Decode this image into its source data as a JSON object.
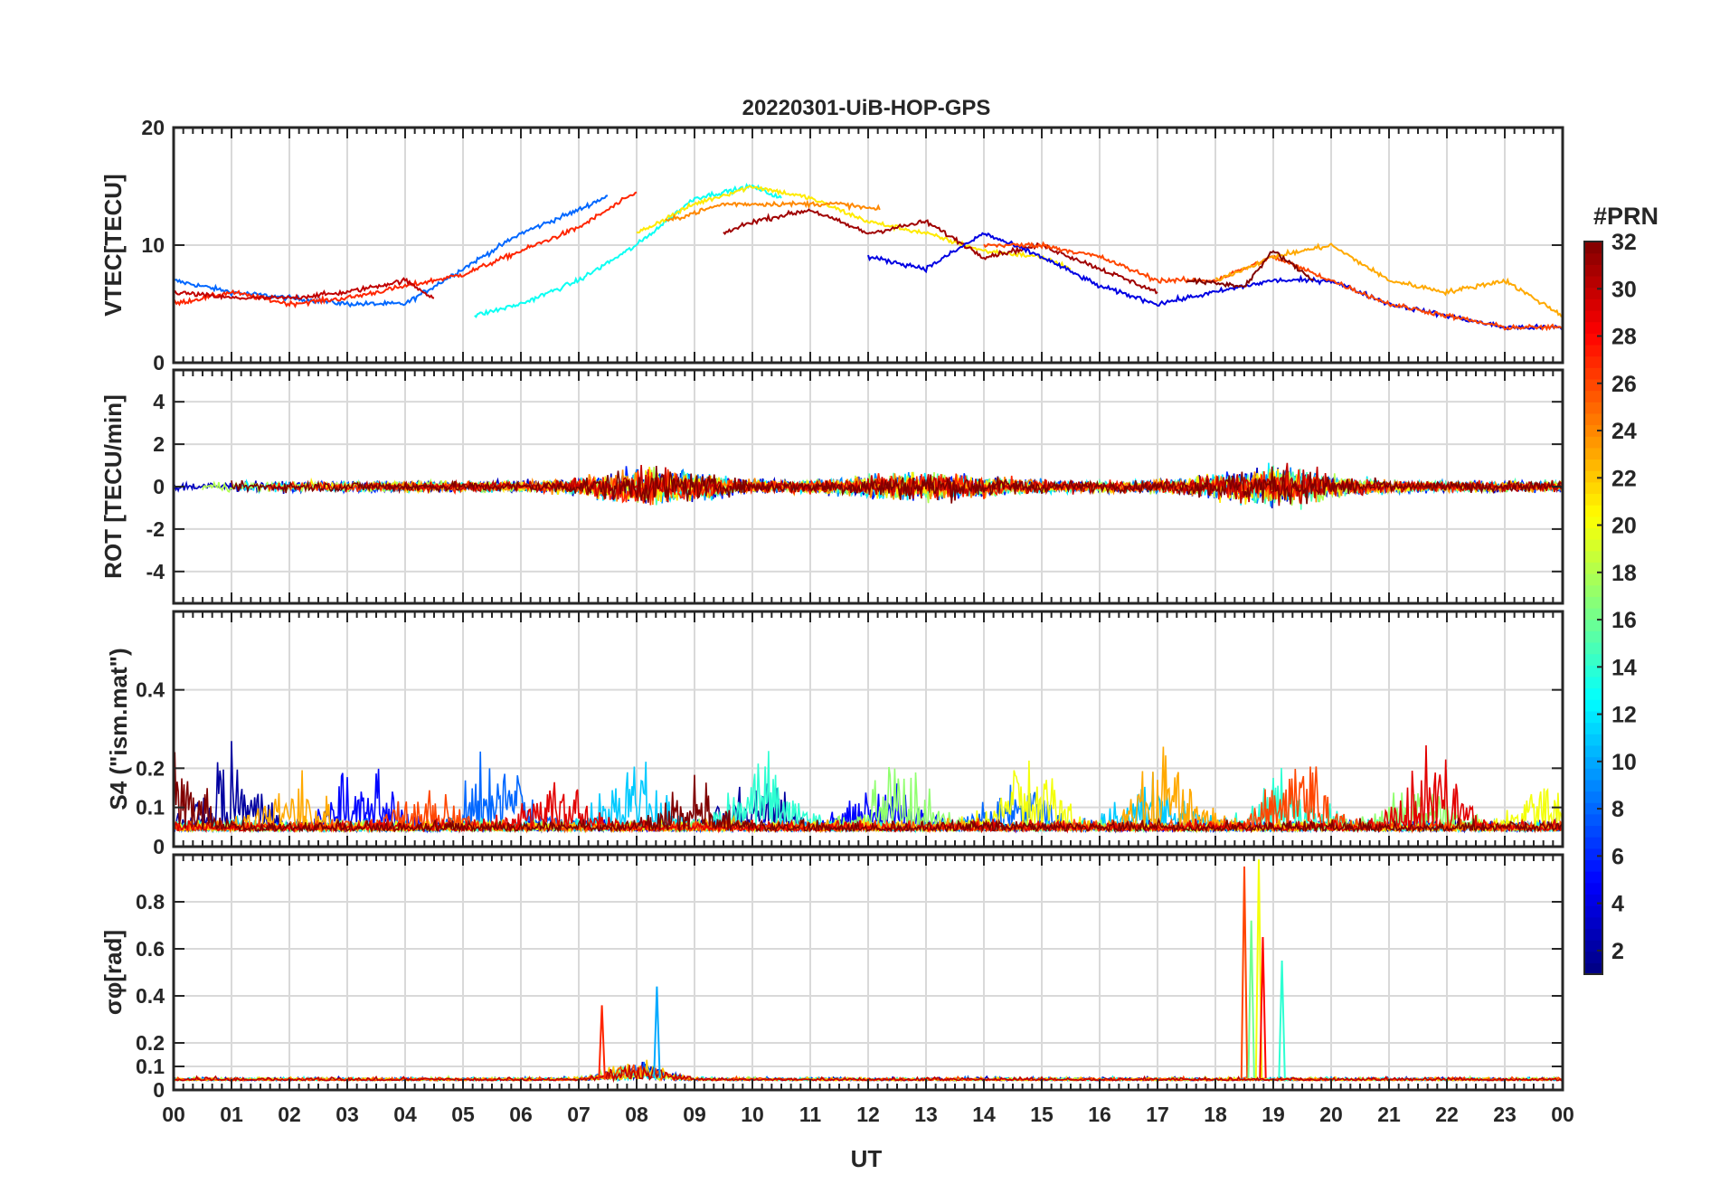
{
  "chart_data": [
    {
      "type": "line",
      "title": "20220301-UiB-HOP-GPS",
      "ylabel": "VTEC[TECU]",
      "ylim": [
        0,
        20
      ],
      "yticks": [
        0,
        10,
        20
      ],
      "xlim": [
        0,
        24
      ],
      "grid": true,
      "traces": [
        {
          "prn": 8,
          "x": [
            0,
            1,
            2,
            3,
            4,
            5,
            6,
            7,
            7.5
          ],
          "y": [
            7,
            6,
            5.5,
            5,
            5,
            8,
            11,
            13,
            14.2
          ]
        },
        {
          "prn": 27,
          "x": [
            0,
            1,
            2,
            3,
            4,
            5,
            6,
            7,
            8
          ],
          "y": [
            5,
            6,
            5,
            5.5,
            6.5,
            7.5,
            9.5,
            11.5,
            14.5
          ]
        },
        {
          "prn": 30,
          "x": [
            0,
            1,
            2,
            3,
            4,
            4.5
          ],
          "y": [
            6,
            5.5,
            5.5,
            6,
            7,
            5.5
          ]
        },
        {
          "prn": 13,
          "x": [
            5.2,
            6,
            7,
            8,
            9,
            10,
            10.5
          ],
          "y": [
            4,
            5,
            7,
            10,
            14,
            15,
            14
          ]
        },
        {
          "prn": 21,
          "x": [
            8,
            9,
            10,
            11,
            12,
            13,
            14,
            15,
            15.5
          ],
          "y": [
            11,
            13.5,
            15,
            14,
            12,
            11,
            9.5,
            9,
            8
          ]
        },
        {
          "prn": 24,
          "x": [
            8.5,
            9.5,
            10.5,
            11.5,
            12.2
          ],
          "y": [
            12,
            13.5,
            13.5,
            13.5,
            13
          ]
        },
        {
          "prn": 31,
          "x": [
            9.5,
            10,
            11,
            12,
            13,
            14,
            15,
            16,
            17
          ],
          "y": [
            11,
            12,
            13,
            11,
            12,
            9,
            10,
            8,
            6
          ]
        },
        {
          "prn": 4,
          "x": [
            12,
            13,
            14,
            15,
            16,
            17,
            18,
            19,
            20,
            21,
            22,
            23,
            24
          ],
          "y": [
            9,
            8,
            11,
            9,
            6.5,
            5,
            6,
            7,
            7,
            5,
            4,
            3,
            3
          ]
        },
        {
          "prn": 26,
          "x": [
            14,
            15,
            16,
            17,
            18,
            19,
            20,
            21,
            22,
            23,
            24
          ],
          "y": [
            10,
            10,
            9,
            7,
            7,
            9,
            7,
            5,
            4,
            3,
            3
          ]
        },
        {
          "prn": 23,
          "x": [
            18,
            19,
            20,
            21,
            22,
            23,
            24
          ],
          "y": [
            7,
            9,
            10,
            7,
            6,
            7,
            4
          ]
        },
        {
          "prn": 32,
          "x": [
            17.5,
            18.5,
            19,
            19.7
          ],
          "y": [
            7,
            6.5,
            9.5,
            7
          ]
        }
      ]
    },
    {
      "type": "line",
      "ylabel": "ROT [TECU/min]",
      "ylim": [
        -5.5,
        5.5
      ],
      "yticks": [
        -4,
        -2,
        0,
        2,
        4
      ],
      "xlim": [
        0,
        24
      ],
      "grid": true
    },
    {
      "type": "line",
      "ylabel": "S4 (\"ism.mat\")",
      "ylim": [
        0,
        0.6
      ],
      "yticks": [
        0,
        0.1,
        0.2,
        0.4
      ],
      "xlim": [
        0,
        24
      ],
      "grid": true
    },
    {
      "type": "line",
      "ylabel": "σφ[rad]",
      "ylim": [
        0,
        1
      ],
      "yticks": [
        0,
        0.1,
        0.2,
        0.4,
        0.6,
        0.8
      ],
      "xlim": [
        0,
        24
      ],
      "xlabel": "UT",
      "xticklabels": [
        "00",
        "01",
        "02",
        "03",
        "04",
        "05",
        "06",
        "07",
        "08",
        "09",
        "10",
        "11",
        "12",
        "13",
        "14",
        "15",
        "16",
        "17",
        "18",
        "19",
        "20",
        "21",
        "22",
        "23",
        "00"
      ],
      "grid": true,
      "spikes": [
        {
          "x": 18.5,
          "y": 0.95
        },
        {
          "x": 18.62,
          "y": 0.72
        },
        {
          "x": 18.75,
          "y": 0.98
        },
        {
          "x": 18.82,
          "y": 0.65
        },
        {
          "x": 19.15,
          "y": 0.55
        },
        {
          "x": 8.35,
          "y": 0.44
        },
        {
          "x": 7.4,
          "y": 0.36
        }
      ]
    }
  ],
  "colorbar": {
    "title": "#PRN",
    "min": 1,
    "max": 32,
    "ticks": [
      2,
      4,
      6,
      8,
      10,
      12,
      14,
      16,
      18,
      20,
      22,
      24,
      26,
      28,
      30,
      32
    ],
    "colormap": "jet"
  }
}
